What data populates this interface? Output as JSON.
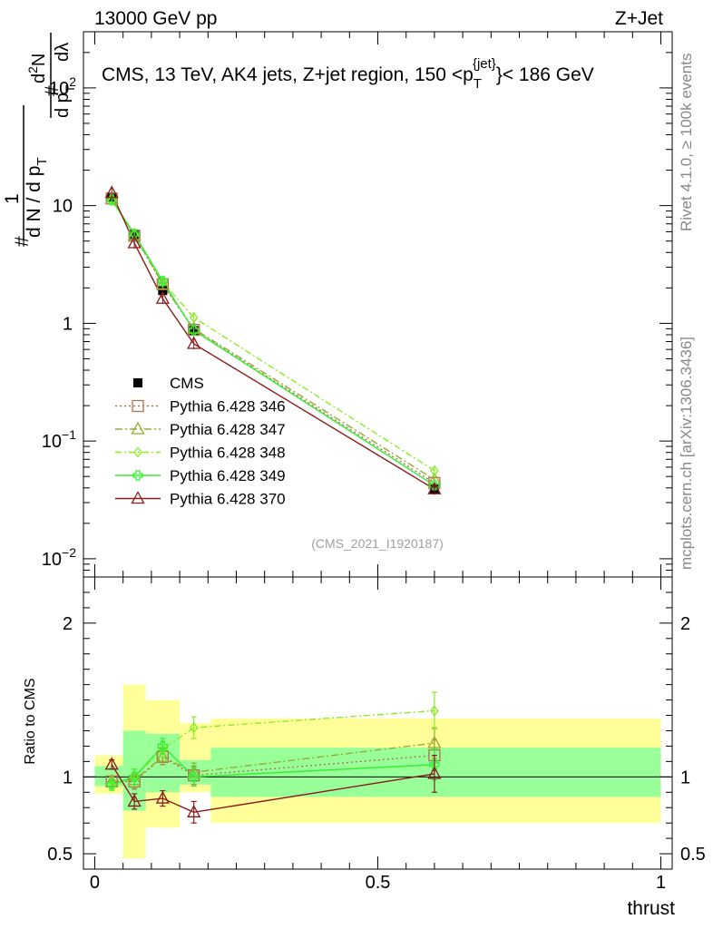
{
  "header": {
    "energy_label": "13000 GeV pp",
    "process_label": "Z+Jet"
  },
  "side_labels": {
    "rivet": "Rivet 4.1.0, ≥ 100k events",
    "mcplots": "mcplots.cern.ch [arXiv:1306.3436]"
  },
  "watermark": "(CMS_2021_I1920187)",
  "colors": {
    "cms": "#000000",
    "p346": "#a6774f",
    "p347": "#9aaa33",
    "p348": "#88ee22",
    "p349": "#33ee33",
    "p370": "#8b1a1a",
    "band_inner": "#99ff99",
    "band_outer": "#ffff99"
  },
  "chart_data": [
    {
      "type": "line",
      "title": "CMS, 13 TeV, AK4 jets, Z+jet region, 150 <p_T^{jet}< 186 GeV",
      "title_parts": {
        "pre": "CMS, 13 TeV, AK4 jets, Z+jet region, 150 <p",
        "sub": "T",
        "sup": "{jet}",
        "post": "}< 186 GeV"
      },
      "ylabel": "1/(dN/dp_T) d²N/(dp_T dλ)",
      "ylabel_parts": {
        "hash": "#",
        "one": "1",
        "dN_over": "d N / d p",
        "T": "T",
        "hash2": "#",
        "d2N": "d",
        "two": "2",
        "N": "N",
        "dp": "d p",
        "dlambda": "dλ"
      },
      "yscale": "log",
      "ylim": [
        0.007,
        300
      ],
      "xlim": [
        -0.02,
        1.02
      ],
      "y_tick_labels": [
        {
          "value": 0.01,
          "base": "10",
          "exp": "−2"
        },
        {
          "value": 0.1,
          "base": "10",
          "exp": "−1"
        },
        {
          "value": 1,
          "base": "1",
          "exp": ""
        },
        {
          "value": 10,
          "base": "10",
          "exp": ""
        },
        {
          "value": 100,
          "base": "10",
          "exp": "2"
        }
      ],
      "x": [
        0.03,
        0.07,
        0.12,
        0.175,
        0.6
      ],
      "series": [
        {
          "name": "CMS",
          "key": "cms",
          "marker": "square",
          "values": [
            11.8,
            5.7,
            1.9,
            0.87,
            0.039
          ]
        },
        {
          "name": "Pythia 6.428 346",
          "key": "p346",
          "marker": "open-square",
          "dash": "2,3",
          "values": [
            11.5,
            5.55,
            2.15,
            0.88,
            0.044
          ]
        },
        {
          "name": "Pythia 6.428 347",
          "key": "p347",
          "marker": "open-triangle",
          "dash": "8,3,2,3",
          "values": [
            11.4,
            5.6,
            2.15,
            0.9,
            0.047
          ]
        },
        {
          "name": "Pythia 6.428 348",
          "key": "p348",
          "marker": "open-diamond",
          "dash": "7,3,2,3",
          "values": [
            11.0,
            5.7,
            2.25,
            1.12,
            0.056
          ]
        },
        {
          "name": "Pythia 6.428 349",
          "key": "p349",
          "marker": "open-cross",
          "dash": "",
          "values": [
            11.2,
            5.75,
            2.28,
            0.87,
            0.042
          ]
        },
        {
          "name": "Pythia 6.428 370",
          "key": "p370",
          "marker": "open-triangle",
          "dash": "",
          "values": [
            12.8,
            4.8,
            1.62,
            0.67,
            0.039
          ]
        }
      ],
      "legend_position": "middle-left"
    },
    {
      "type": "line",
      "ylabel": "Ratio to CMS",
      "xlabel": "thrust",
      "ylim": [
        0.4,
        2.3
      ],
      "xlim": [
        -0.02,
        1.02
      ],
      "y_tick_labels": [
        {
          "value": 0.5,
          "label": "0.5"
        },
        {
          "value": 1,
          "label": "1"
        },
        {
          "value": 2,
          "label": "2"
        }
      ],
      "x_tick_labels": [
        {
          "value": 0,
          "label": "0"
        },
        {
          "value": 0.5,
          "label": "0.5"
        },
        {
          "value": 1,
          "label": "1"
        }
      ],
      "bins": [
        {
          "lo": 0.0,
          "hi": 0.05,
          "inner": [
            0.94,
            1.07
          ],
          "outer": [
            0.89,
            1.14
          ]
        },
        {
          "lo": 0.05,
          "hi": 0.09,
          "inner": [
            0.78,
            1.3
          ],
          "outer": [
            0.47,
            1.6
          ]
        },
        {
          "lo": 0.09,
          "hi": 0.15,
          "inner": [
            0.9,
            1.28
          ],
          "outer": [
            0.67,
            1.5
          ]
        },
        {
          "lo": 0.15,
          "hi": 0.205,
          "inner": [
            0.95,
            1.11
          ],
          "outer": [
            0.9,
            1.35
          ]
        },
        {
          "lo": 0.205,
          "hi": 1.0,
          "inner": [
            0.87,
            1.19
          ],
          "outer": [
            0.7,
            1.38
          ]
        }
      ],
      "x": [
        0.03,
        0.07,
        0.12,
        0.175,
        0.6
      ],
      "series": [
        {
          "name": "Pythia 6.428 346",
          "key": "p346",
          "values": [
            0.97,
            0.97,
            1.13,
            1.01,
            1.14
          ],
          "err": [
            0.03,
            0.05,
            0.05,
            0.06,
            0.1
          ]
        },
        {
          "name": "Pythia 6.428 347",
          "key": "p347",
          "values": [
            0.97,
            0.98,
            1.13,
            1.03,
            1.22
          ],
          "err": [
            0.03,
            0.05,
            0.05,
            0.06,
            0.1
          ]
        },
        {
          "name": "Pythia 6.428 348",
          "key": "p348",
          "values": [
            0.94,
            1.0,
            1.18,
            1.32,
            1.43
          ],
          "err": [
            0.03,
            0.05,
            0.05,
            0.07,
            0.12
          ]
        },
        {
          "name": "Pythia 6.428 349",
          "key": "p349",
          "values": [
            0.95,
            1.0,
            1.2,
            1.0,
            1.08
          ],
          "err": [
            0.03,
            0.05,
            0.05,
            0.06,
            0.1
          ]
        },
        {
          "name": "Pythia 6.428 370",
          "key": "p370",
          "values": [
            1.08,
            0.84,
            0.86,
            0.77,
            1.02
          ],
          "err": [
            0.03,
            0.05,
            0.05,
            0.07,
            0.12
          ]
        }
      ]
    }
  ]
}
